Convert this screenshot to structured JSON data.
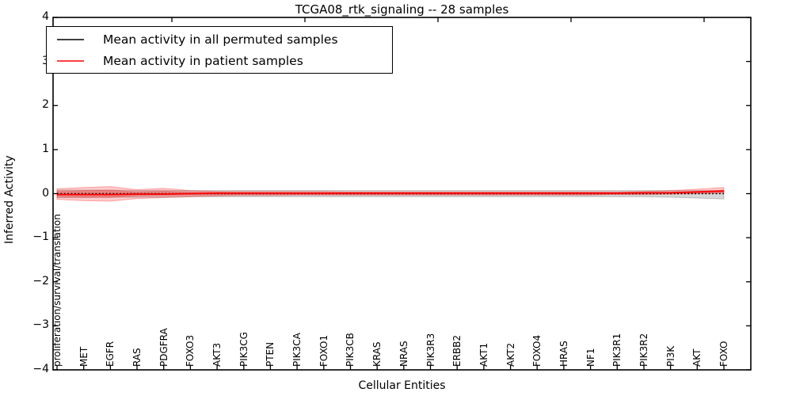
{
  "chart_data": {
    "type": "line",
    "title": "TCGA08_rtk_signaling -- 28 samples",
    "xlabel": "Cellular Entities",
    "ylabel": "Inferred Activity",
    "ylim": [
      -4,
      4
    ],
    "yticks": [
      4,
      3,
      2,
      1,
      0,
      -1,
      -2,
      -3,
      -4
    ],
    "ytick_labels": [
      "4",
      "3",
      "2",
      "1",
      "0",
      "−1",
      "−2",
      "−3",
      "−4"
    ],
    "grid": false,
    "legend_position": "upper left",
    "categories": [
      "proliferation/survival/translation",
      "MET",
      "EGFR",
      "RAS",
      "PDGFRA",
      "FOXO3",
      "AKT3",
      "PIK3CG",
      "PTEN",
      "PIK3CA",
      "FOXO1",
      "PIK3CB",
      "KRAS",
      "NRAS",
      "PIK3R3",
      "ERBB2",
      "AKT1",
      "AKT2",
      "FOXO4",
      "HRAS",
      "NF1",
      "PIK3R1",
      "PIK3R2",
      "PI3K",
      "AKT",
      "FOXO"
    ],
    "series": [
      {
        "name": "Mean activity in all permuted samples",
        "color": "#000000",
        "style": "dotted",
        "values": [
          0,
          0,
          0,
          0,
          0,
          0,
          0,
          0,
          0,
          0,
          0,
          0,
          0,
          0,
          0,
          0,
          0,
          0,
          0,
          0,
          0,
          0,
          0,
          0,
          0,
          0
        ]
      },
      {
        "name": "Mean activity in patient samples",
        "color": "#ff0000",
        "style": "solid",
        "values": [
          -0.02,
          -0.02,
          -0.02,
          -0.01,
          -0.01,
          0,
          0.01,
          0.01,
          0.01,
          0.01,
          0.01,
          0.01,
          0.01,
          0.01,
          0.01,
          0.01,
          0.01,
          0.01,
          0.01,
          0.01,
          0.01,
          0.01,
          0.02,
          0.02,
          0.04,
          0.06
        ]
      }
    ],
    "bands": [
      {
        "name": "permuted-samples-spread",
        "color": "rgba(110,110,110,0.28)",
        "edge": "rgba(60,60,60,0.25)",
        "upper": [
          0.08,
          0.08,
          0.08,
          0.07,
          0.07,
          0.07,
          0.07,
          0.07,
          0.07,
          0.07,
          0.07,
          0.07,
          0.07,
          0.07,
          0.07,
          0.07,
          0.07,
          0.07,
          0.07,
          0.07,
          0.07,
          0.07,
          0.07,
          0.07,
          0.07,
          0.07
        ],
        "lower": [
          -0.09,
          -0.09,
          -0.08,
          -0.08,
          -0.08,
          -0.07,
          -0.07,
          -0.07,
          -0.07,
          -0.07,
          -0.07,
          -0.07,
          -0.07,
          -0.07,
          -0.07,
          -0.07,
          -0.07,
          -0.07,
          -0.07,
          -0.07,
          -0.07,
          -0.07,
          -0.07,
          -0.08,
          -0.1,
          -0.12
        ],
        "values_note": "mean plus/minus spread of permuted samples"
      },
      {
        "name": "patient-samples-spread-outer",
        "color": "rgba(255,0,0,0.20)",
        "edge": "rgba(255,0,0,0.30)",
        "upper": [
          0.11,
          0.14,
          0.16,
          0.09,
          0.12,
          0.07,
          0.05,
          0.05,
          0.05,
          0.05,
          0.05,
          0.04,
          0.04,
          0.04,
          0.04,
          0.04,
          0.04,
          0.04,
          0.04,
          0.04,
          0.04,
          0.04,
          0.05,
          0.07,
          0.1,
          0.14
        ],
        "lower": [
          -0.13,
          -0.16,
          -0.17,
          -0.11,
          -0.09,
          -0.07,
          -0.05,
          -0.04,
          -0.04,
          -0.03,
          -0.03,
          -0.03,
          -0.03,
          -0.03,
          -0.03,
          -0.03,
          -0.03,
          -0.03,
          -0.03,
          -0.03,
          -0.03,
          -0.02,
          -0.02,
          -0.01,
          0.0,
          0.01
        ]
      },
      {
        "name": "patient-samples-spread-inner",
        "color": "rgba(255,0,0,0.25)",
        "edge": "rgba(255,0,0,0.15)",
        "upper": [
          0.05,
          0.07,
          0.08,
          0.04,
          0.06,
          0.03,
          0.03,
          0.02,
          0.02,
          0.02,
          0.02,
          0.02,
          0.02,
          0.02,
          0.02,
          0.02,
          0.02,
          0.02,
          0.02,
          0.02,
          0.02,
          0.02,
          0.02,
          0.03,
          0.05,
          0.08
        ],
        "lower": [
          -0.07,
          -0.08,
          -0.09,
          -0.05,
          -0.04,
          -0.03,
          -0.03,
          -0.02,
          -0.02,
          -0.02,
          -0.02,
          -0.02,
          -0.02,
          -0.02,
          -0.02,
          -0.02,
          -0.02,
          -0.02,
          -0.02,
          -0.02,
          -0.02,
          -0.01,
          -0.01,
          0.0,
          0.01,
          0.03
        ]
      }
    ]
  }
}
